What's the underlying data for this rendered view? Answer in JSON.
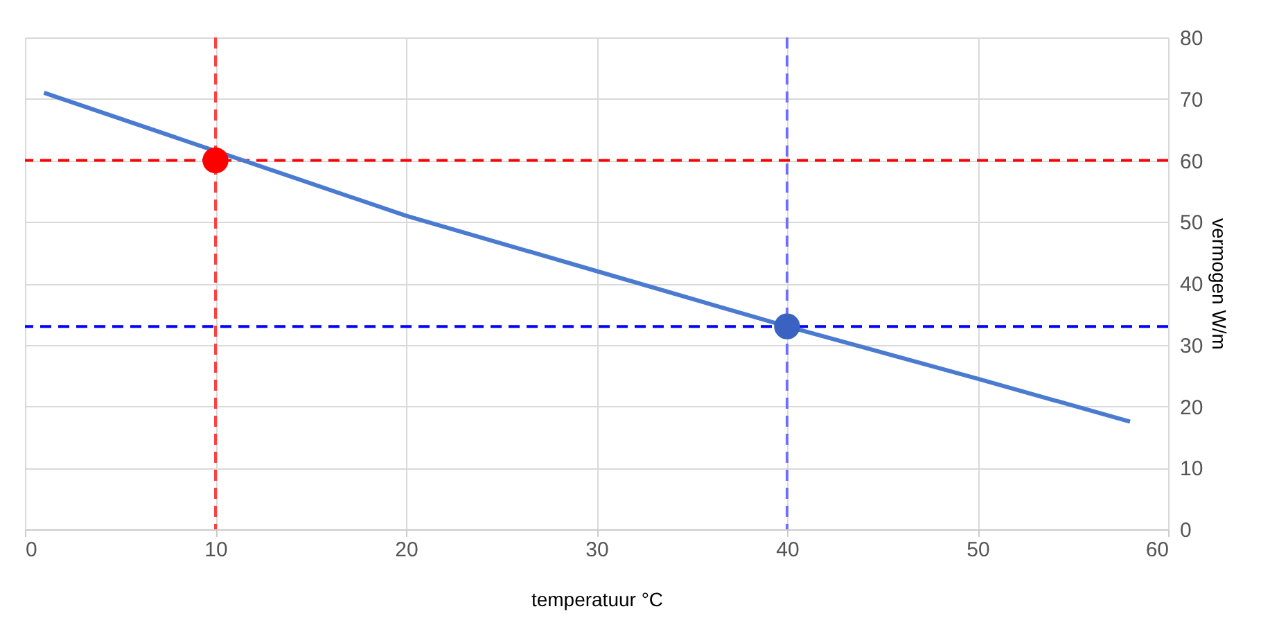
{
  "chart_data": {
    "type": "line",
    "xlabel": "temperatuur °C",
    "ylabel": "vermogen W/m",
    "xlim": [
      0,
      60
    ],
    "ylim": [
      0,
      80
    ],
    "xticks": [
      0,
      10,
      20,
      30,
      40,
      50,
      60
    ],
    "yticks": [
      0,
      10,
      20,
      30,
      40,
      50,
      60,
      70,
      80
    ],
    "grid": true,
    "series": [
      {
        "color": "#4a7bd0",
        "x": [
          1,
          20,
          30,
          40,
          50,
          58
        ],
        "values": [
          71,
          51,
          42,
          33,
          24.5,
          17.5
        ],
        "marker": "none"
      },
      {
        "type": "scatter",
        "color": "#ff0000",
        "x": [
          10
        ],
        "values": [
          60
        ],
        "marker": "circle"
      },
      {
        "type": "scatter",
        "color": "#3a62c0",
        "x": [
          40
        ],
        "values": [
          33
        ],
        "marker": "circle"
      }
    ],
    "ref_lines": [
      {
        "axis": "y",
        "value": 60,
        "color": "#ff0000",
        "line_style": "dashed"
      },
      {
        "axis": "x",
        "value": 10,
        "color": "#ff4040",
        "line_style": "dashed"
      },
      {
        "axis": "y",
        "value": 33,
        "color": "#0000ff",
        "line_style": "dashed"
      },
      {
        "axis": "x",
        "value": 40,
        "color": "#6f6fff",
        "line_style": "dashed"
      }
    ]
  }
}
